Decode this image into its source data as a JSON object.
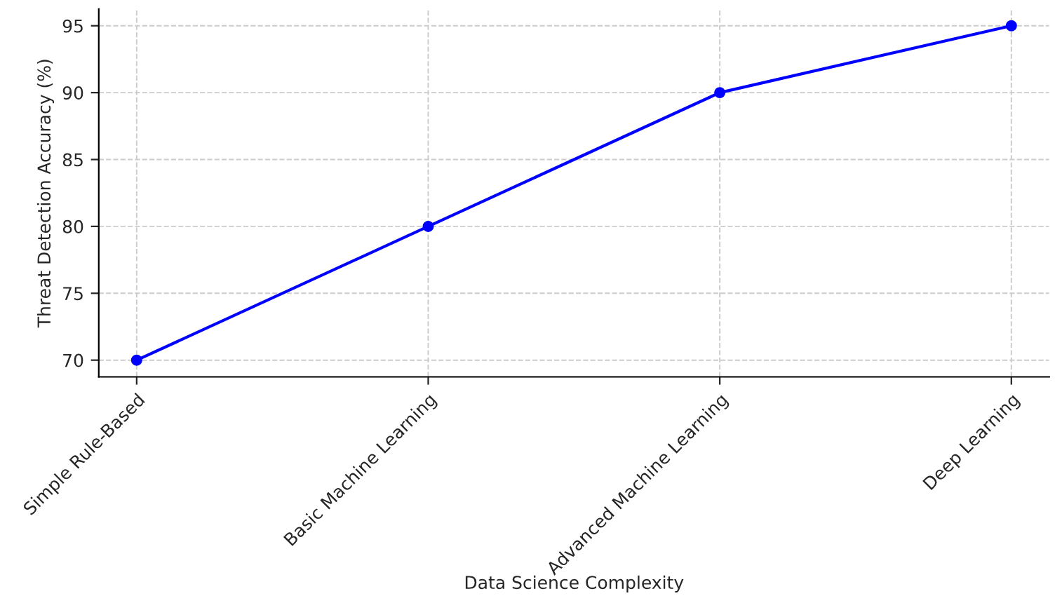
{
  "chart_data": {
    "type": "line",
    "xlabel": "Data Science Complexity",
    "ylabel": "Threat Detection Accuracy (%)",
    "categories": [
      "Simple Rule-Based",
      "Basic Machine Learning",
      "Advanced Machine Learning",
      "Deep Learning"
    ],
    "series": [
      {
        "color": "#0000ff",
        "values": [
          70,
          80,
          90,
          95
        ]
      }
    ],
    "ylim": [
      68.75,
      96.25
    ],
    "yticks": [
      70,
      75,
      80,
      85,
      90,
      95
    ],
    "grid": true,
    "marker": "circle",
    "line_style": "solid"
  }
}
